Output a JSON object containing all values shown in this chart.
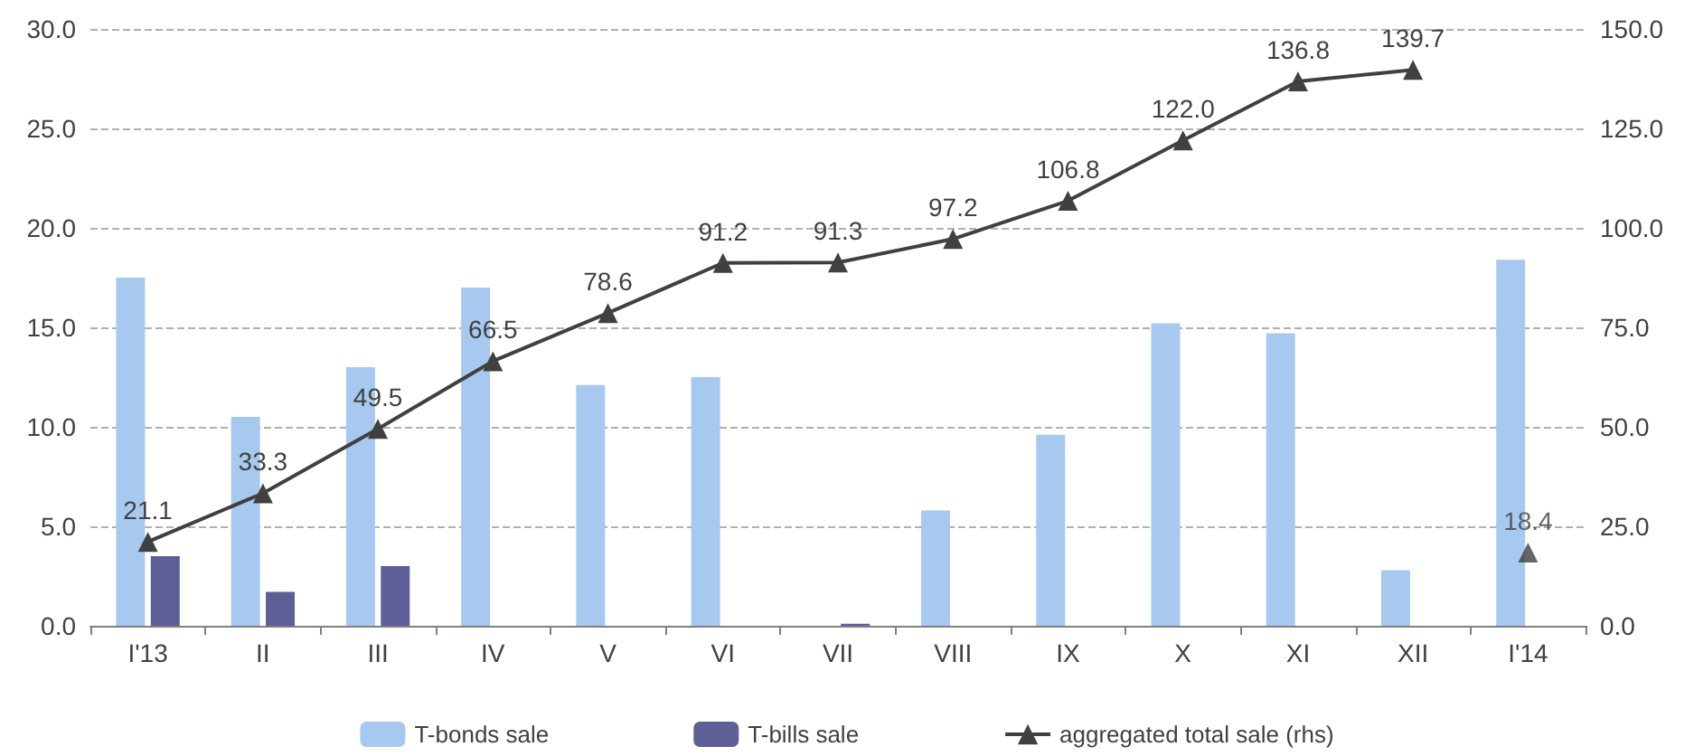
{
  "chart_data": {
    "type": "bar",
    "categories": [
      "I'13",
      "II",
      "III",
      "IV",
      "V",
      "VI",
      "VII",
      "VIII",
      "IX",
      "X",
      "XI",
      "XII",
      "I'14"
    ],
    "series": [
      {
        "name": "T-bonds sale",
        "color": "#a7c9ef",
        "values": [
          17.5,
          10.5,
          13.0,
          17.0,
          12.1,
          12.5,
          null,
          5.8,
          9.6,
          15.2,
          14.7,
          2.8,
          18.4
        ]
      },
      {
        "name": "T-bills sale",
        "color": "#5f5f98",
        "values": [
          3.5,
          1.7,
          3.0,
          null,
          null,
          null,
          0.1,
          null,
          null,
          null,
          null,
          null,
          null
        ]
      },
      {
        "name": "aggregated total sale (rhs)",
        "type": "line",
        "axis": "y2",
        "color": "#404040",
        "marker": "triangle",
        "values": [
          21.1,
          33.3,
          49.5,
          66.5,
          78.6,
          91.2,
          91.3,
          97.2,
          106.8,
          122.0,
          136.8,
          139.7,
          null
        ],
        "value_labels": [
          "21.1",
          "33.3",
          "49.5",
          "66.5",
          "78.6",
          "91.2",
          "91.3",
          "97.2",
          "106.8",
          "122.0",
          "136.8",
          "139.7",
          null
        ]
      },
      {
        "type": "scatter",
        "axis": "y2",
        "color": "#404040",
        "marker": "triangle",
        "values": [
          null,
          null,
          null,
          null,
          null,
          null,
          null,
          null,
          null,
          null,
          null,
          null,
          18.4
        ],
        "value_labels": [
          null,
          null,
          null,
          null,
          null,
          null,
          null,
          null,
          null,
          null,
          null,
          null,
          "18.4"
        ]
      }
    ],
    "ylim": [
      0,
      30
    ],
    "yticks": [
      {
        "value": 0,
        "label": "0.0"
      },
      {
        "value": 5,
        "label": "5.0"
      },
      {
        "value": 10,
        "label": "10.0"
      },
      {
        "value": 15,
        "label": "15.0"
      },
      {
        "value": 20,
        "label": "20.0"
      },
      {
        "value": 25,
        "label": "25.0"
      },
      {
        "value": 30,
        "label": "30.0"
      }
    ],
    "y2lim": [
      0,
      150
    ],
    "y2ticks": [
      {
        "value": 0,
        "label": "0.0"
      },
      {
        "value": 25,
        "label": "25.0"
      },
      {
        "value": 50,
        "label": "50.0"
      },
      {
        "value": 75,
        "label": "75.0"
      },
      {
        "value": 100,
        "label": "100.0"
      },
      {
        "value": 125,
        "label": "125.0"
      },
      {
        "value": 150,
        "label": "150.0"
      }
    ],
    "grid": "y",
    "legend": "bottom",
    "line_style": "solid"
  }
}
